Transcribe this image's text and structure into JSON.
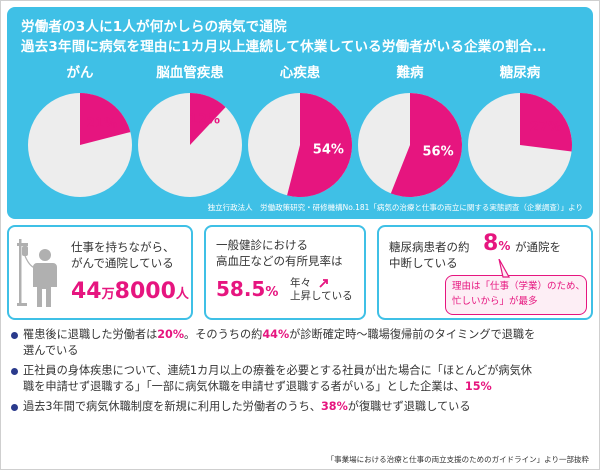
{
  "title_line1": "労働者の3人に1人が何かしらの病気で通院",
  "title_line2": "過去3年間に病気を理由に1カ月以上連続して休業している労働者がいる企業の割合…",
  "source_top": "独立行政法人　労働政策研究・研修機構No.181「病気の治療と仕事の両立に関する実態調査（企業調査）」より",
  "colors": {
    "accent_blue": "#3fc0e6",
    "pink": "#e6157f",
    "pie_bg": "#ededed",
    "navy": "#2a3a8c"
  },
  "chart_data": {
    "type": "pie",
    "title": "",
    "unit": "%",
    "series": [
      {
        "label": "がん",
        "value": 21,
        "display": "21%"
      },
      {
        "label": "脳血管疾患",
        "value": 12,
        "display": "12%"
      },
      {
        "label": "心疾患",
        "value": 54,
        "display": "54%"
      },
      {
        "label": "難病",
        "value": 56,
        "display": "56%"
      },
      {
        "label": "糖尿病",
        "value": 27,
        "display": "27%"
      }
    ]
  },
  "cards": {
    "c1": {
      "line1": "仕事を持ちながら、",
      "line2": "がんで通院している",
      "num1": "44",
      "unit1": "万",
      "num2": "8000",
      "unit2": "人",
      "icon": "iv-drip-patient-icon"
    },
    "c2": {
      "line1": "一般健診における",
      "line2": "高血圧などの有所見率は",
      "value": "58.5",
      "unit": "%",
      "suffix1": "年々",
      "suffix2": "上昇している"
    },
    "c3": {
      "pre": "糖尿病患者の約",
      "value": "8",
      "unit": "%",
      "post": "が通院を",
      "line2": "中断している",
      "note1": "理由は「仕事（学業）のため、",
      "note2": "忙しいから」が最多"
    }
  },
  "bullets": [
    [
      {
        "t": "罹患後に退職した労働者は"
      },
      {
        "t": "20%",
        "hl": true
      },
      {
        "t": "。そのうちの約"
      },
      {
        "t": "44%",
        "hl": true
      },
      {
        "t": "が診断確定時〜職場復帰前のタイミングで退職を"
      }
    ],
    [
      {
        "t": "選んでいる"
      }
    ],
    [
      {
        "t": "正社員の身体疾患について、連続1カ月以上の療養を必要とする社員が出た場合に「ほとんどが病気休"
      }
    ],
    [
      {
        "t": "職を申請せず退職する」「一部に病気休職を申請せず退職する者がいる」とした企業は、"
      },
      {
        "t": "15%",
        "hl": true
      }
    ],
    [
      {
        "t": "過去3年間で病気休職制度を新規に利用した労働者のうち、"
      },
      {
        "t": "38%",
        "hl": true
      },
      {
        "t": "が復職せず退職している"
      }
    ]
  ],
  "source_bottom": "「事業場における治療と仕事の両立支援のためのガイドライン」より一部抜粋"
}
